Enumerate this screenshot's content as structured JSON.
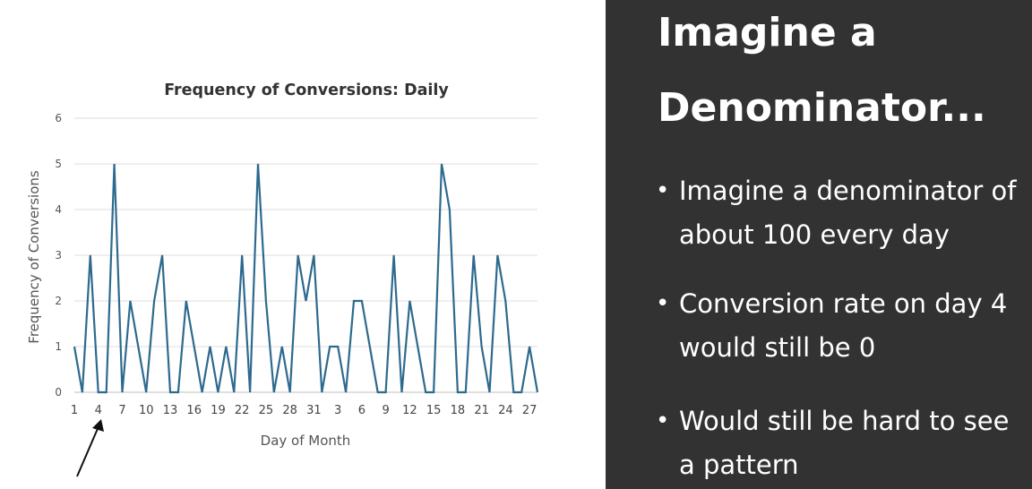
{
  "slide": {
    "heading": [
      "Imagine a",
      "Denominator..."
    ],
    "bullets": [
      {
        "lines": [
          "Imagine a denominator of",
          "about 100 every day"
        ]
      },
      {
        "lines": [
          "Conversion rate on day 4",
          "would still be 0"
        ]
      },
      {
        "lines": [
          "Would still be hard to see",
          "a pattern"
        ]
      }
    ],
    "colors": {
      "panel": "#323232",
      "text": "#ffffff"
    }
  },
  "chart_data": {
    "type": "line",
    "title": "Frequency of Conversions: Daily",
    "xlabel": "Day of Month",
    "ylabel": "Frequency of Conversions",
    "ylim": [
      0,
      6
    ],
    "yticks": [
      0,
      1,
      2,
      3,
      4,
      5,
      6
    ],
    "grid": true,
    "legend": "none",
    "line_color": "#2e6a8e",
    "x": [
      "1",
      "2",
      "3",
      "4",
      "5",
      "6",
      "7",
      "8",
      "9",
      "10",
      "11",
      "12",
      "13",
      "14",
      "15",
      "16",
      "17",
      "18",
      "19",
      "20",
      "21",
      "22",
      "23",
      "24",
      "25",
      "26",
      "27",
      "28",
      "29",
      "30",
      "31",
      "1",
      "2",
      "3",
      "4",
      "5",
      "6",
      "7",
      "8",
      "9",
      "10",
      "11",
      "12",
      "13",
      "14",
      "15",
      "16",
      "17",
      "18",
      "19",
      "20",
      "21",
      "22",
      "23",
      "24",
      "25",
      "26",
      "27",
      "28"
    ],
    "x_tick_labels": [
      "1",
      "4",
      "7",
      "10",
      "13",
      "16",
      "19",
      "22",
      "25",
      "28",
      "31",
      "3",
      "6",
      "9",
      "12",
      "15",
      "18",
      "21",
      "24",
      "27"
    ],
    "x_tick_step": 3,
    "values": [
      1,
      0,
      3,
      0,
      0,
      5,
      0,
      2,
      1,
      0,
      2,
      3,
      0,
      0,
      2,
      1,
      0,
      1,
      0,
      1,
      0,
      3,
      0,
      5,
      2,
      0,
      1,
      0,
      3,
      2,
      3,
      0,
      1,
      1,
      0,
      2,
      2,
      1,
      0,
      0,
      3,
      0,
      2,
      1,
      0,
      0,
      5,
      4,
      0,
      0,
      3,
      1,
      0,
      3,
      2,
      0,
      0,
      1,
      0
    ],
    "annotation": "arrow pointing to day 4"
  }
}
